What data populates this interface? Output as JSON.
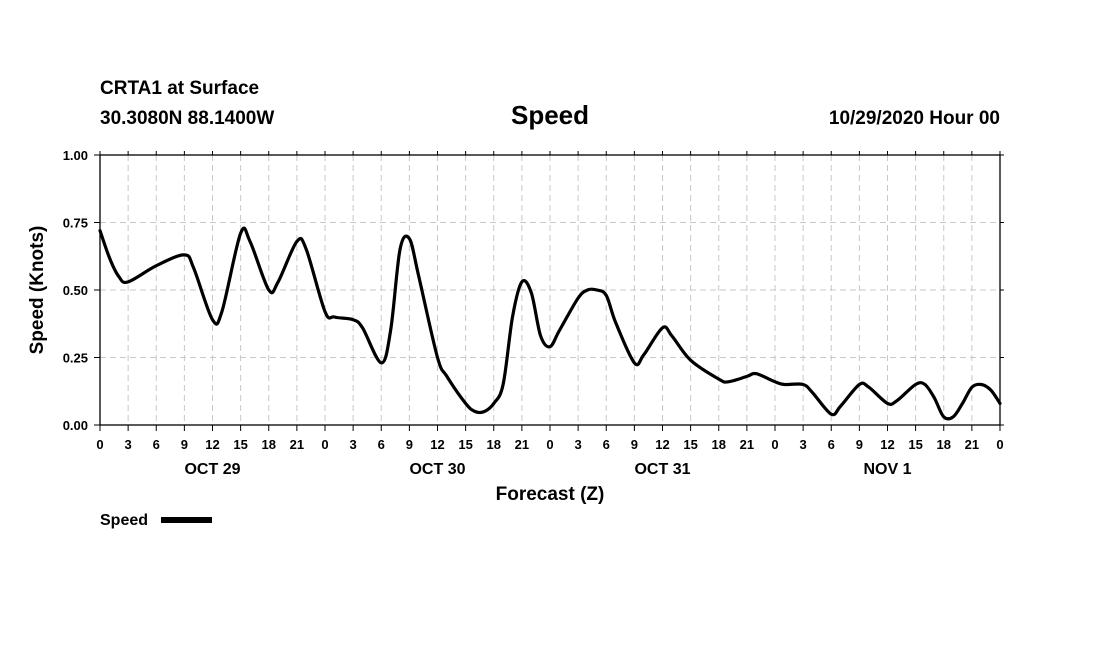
{
  "header": {
    "station": "CRTA1 at Surface",
    "location": "30.3080N 88.1400W",
    "date": "10/29/2020 Hour 00"
  },
  "chart_data": {
    "type": "line",
    "title": "Speed",
    "xlabel": "Forecast (Z)",
    "ylabel": "Speed (Knots)",
    "ylim": [
      0,
      1
    ],
    "xlim": [
      0,
      96
    ],
    "grid": true,
    "legend_position": "bottom-left",
    "y_ticks": [
      {
        "value": 0.0,
        "label": "0.00"
      },
      {
        "value": 0.25,
        "label": "0.25"
      },
      {
        "value": 0.5,
        "label": "0.50"
      },
      {
        "value": 0.75,
        "label": "0.75"
      },
      {
        "value": 1.0,
        "label": "1.00"
      }
    ],
    "x_tick_labels": [
      "0",
      "3",
      "6",
      "9",
      "12",
      "15",
      "18",
      "21",
      "0",
      "3",
      "6",
      "9",
      "12",
      "15",
      "18",
      "21",
      "0",
      "3",
      "6",
      "9",
      "12",
      "15",
      "18",
      "21",
      "0",
      "3",
      "6",
      "9",
      "12",
      "15",
      "18",
      "21",
      "0"
    ],
    "x_tick_step_hours": 3,
    "day_labels": [
      {
        "hour": 12,
        "label": "OCT 29"
      },
      {
        "hour": 36,
        "label": "OCT 30"
      },
      {
        "hour": 60,
        "label": "OCT 31"
      },
      {
        "hour": 84,
        "label": "NOV 1"
      }
    ],
    "series": [
      {
        "name": "Speed",
        "color": "#000000",
        "points": [
          [
            0,
            0.72
          ],
          [
            1,
            0.62
          ],
          [
            2,
            0.55
          ],
          [
            3,
            0.53
          ],
          [
            6,
            0.59
          ],
          [
            9,
            0.63
          ],
          [
            10,
            0.58
          ],
          [
            12,
            0.39
          ],
          [
            13,
            0.42
          ],
          [
            15,
            0.71
          ],
          [
            16,
            0.68
          ],
          [
            18,
            0.5
          ],
          [
            19,
            0.53
          ],
          [
            21,
            0.68
          ],
          [
            22,
            0.65
          ],
          [
            24,
            0.42
          ],
          [
            25,
            0.4
          ],
          [
            27,
            0.39
          ],
          [
            28,
            0.36
          ],
          [
            30,
            0.23
          ],
          [
            31,
            0.35
          ],
          [
            32,
            0.65
          ],
          [
            33,
            0.69
          ],
          [
            34,
            0.55
          ],
          [
            36,
            0.25
          ],
          [
            37,
            0.18
          ],
          [
            39,
            0.08
          ],
          [
            40,
            0.05
          ],
          [
            41,
            0.05
          ],
          [
            42,
            0.08
          ],
          [
            43,
            0.15
          ],
          [
            44,
            0.4
          ],
          [
            45,
            0.53
          ],
          [
            46,
            0.49
          ],
          [
            47,
            0.33
          ],
          [
            48,
            0.29
          ],
          [
            49,
            0.35
          ],
          [
            51,
            0.47
          ],
          [
            52,
            0.5
          ],
          [
            53,
            0.5
          ],
          [
            54,
            0.48
          ],
          [
            55,
            0.38
          ],
          [
            57,
            0.23
          ],
          [
            58,
            0.26
          ],
          [
            60,
            0.36
          ],
          [
            61,
            0.33
          ],
          [
            63,
            0.24
          ],
          [
            66,
            0.17
          ],
          [
            67,
            0.16
          ],
          [
            69,
            0.18
          ],
          [
            70,
            0.19
          ],
          [
            72,
            0.16
          ],
          [
            73,
            0.15
          ],
          [
            75,
            0.15
          ],
          [
            76,
            0.12
          ],
          [
            78,
            0.04
          ],
          [
            79,
            0.07
          ],
          [
            81,
            0.15
          ],
          [
            82,
            0.14
          ],
          [
            84,
            0.08
          ],
          [
            85,
            0.09
          ],
          [
            87,
            0.15
          ],
          [
            88,
            0.15
          ],
          [
            89,
            0.1
          ],
          [
            90,
            0.03
          ],
          [
            91,
            0.03
          ],
          [
            92,
            0.08
          ],
          [
            93,
            0.14
          ],
          [
            94,
            0.15
          ],
          [
            95,
            0.13
          ],
          [
            96,
            0.08
          ]
        ]
      }
    ]
  }
}
